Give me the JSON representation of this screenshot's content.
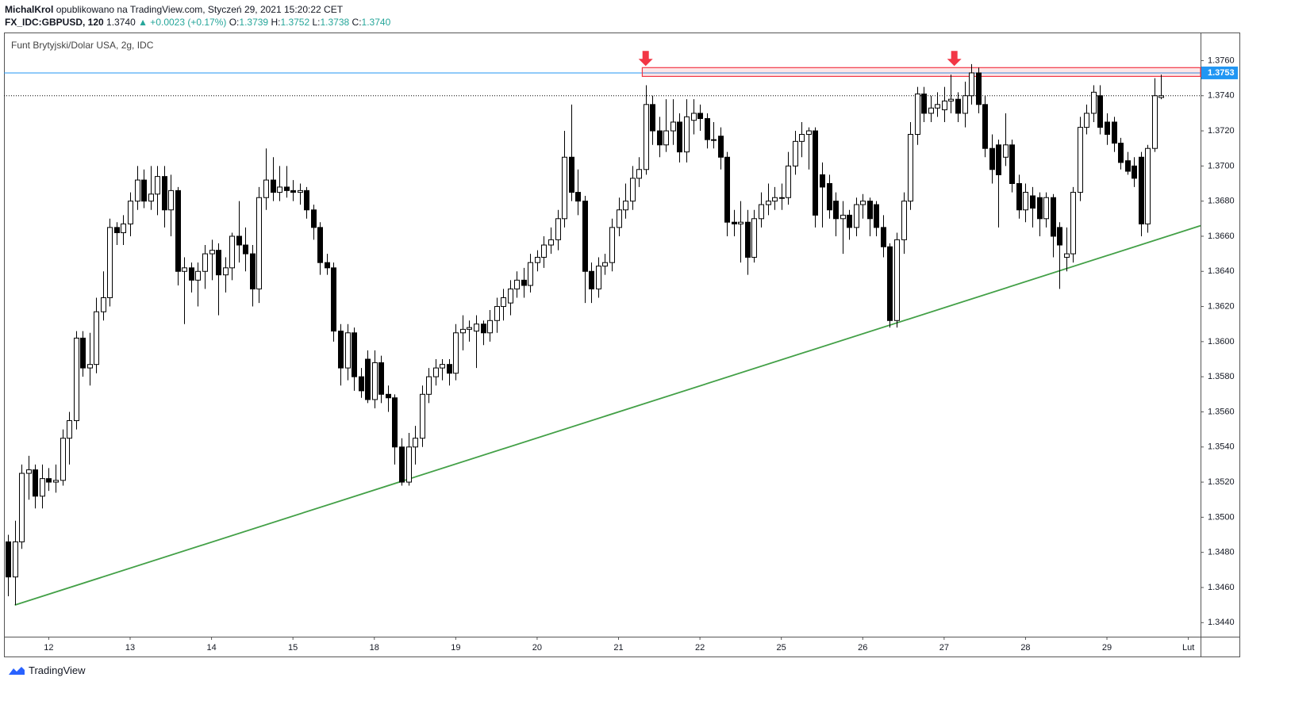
{
  "header": {
    "user": "MichalKrol",
    "published": "opublikowano na TradingView.com, Styczeń 29, 2021 15:20:22 CET",
    "symbol": "FX_IDC:GBPUSD, 120",
    "last": "1.3740",
    "change": "▲ +0.0023 (+0.17%)",
    "legend": [
      {
        "label": "O:",
        "value": "1.3739"
      },
      {
        "label": "H:",
        "value": "1.3752"
      },
      {
        "label": "L:",
        "value": "1.3738"
      },
      {
        "label": "C:",
        "value": "1.3740"
      }
    ]
  },
  "footer": {
    "brand": "TradingView"
  },
  "chart_data": {
    "type": "candlestick",
    "subtitle": "Funt Brytyjski/Dolar USA, 2g, IDC",
    "up_color": "#ffffff",
    "down_color": "#000000",
    "wick_color": "#000000",
    "xlim": [
      -0.6,
      175.8
    ],
    "ylim": [
      1.3432,
      1.3776
    ],
    "xticks": [
      {
        "value": 6,
        "label": "12"
      },
      {
        "value": 18,
        "label": "13"
      },
      {
        "value": 30,
        "label": "14"
      },
      {
        "value": 42,
        "label": "15"
      },
      {
        "value": 54,
        "label": "18"
      },
      {
        "value": 66,
        "label": "19"
      },
      {
        "value": 78,
        "label": "20"
      },
      {
        "value": 90,
        "label": "21"
      },
      {
        "value": 102,
        "label": "22"
      },
      {
        "value": 114,
        "label": "25"
      },
      {
        "value": 126,
        "label": "26"
      },
      {
        "value": 138,
        "label": "27"
      },
      {
        "value": 150,
        "label": "28"
      },
      {
        "value": 162,
        "label": "29"
      },
      {
        "value": 174,
        "label": "Lut"
      }
    ],
    "yticks": [
      {
        "value": 1.344,
        "label": "1.3440"
      },
      {
        "value": 1.346,
        "label": "1.3460"
      },
      {
        "value": 1.348,
        "label": "1.3480"
      },
      {
        "value": 1.35,
        "label": "1.3500"
      },
      {
        "value": 1.352,
        "label": "1.3520"
      },
      {
        "value": 1.354,
        "label": "1.3540"
      },
      {
        "value": 1.356,
        "label": "1.3560"
      },
      {
        "value": 1.358,
        "label": "1.3580"
      },
      {
        "value": 1.36,
        "label": "1.3600"
      },
      {
        "value": 1.362,
        "label": "1.3620"
      },
      {
        "value": 1.364,
        "label": "1.3640"
      },
      {
        "value": 1.366,
        "label": "1.3660"
      },
      {
        "value": 1.368,
        "label": "1.3680"
      },
      {
        "value": 1.37,
        "label": "1.3700"
      },
      {
        "value": 1.372,
        "label": "1.3720"
      },
      {
        "value": 1.374,
        "label": "1.3740"
      },
      {
        "value": 1.376,
        "label": "1.3760"
      }
    ],
    "last_price": 1.374,
    "price_marker": {
      "value": 1.3753,
      "label": "1.3753",
      "color": "#2196f3"
    },
    "resistance": {
      "x": 93.5,
      "ylim": [
        1.3751,
        1.3756
      ],
      "color": "#f23645"
    },
    "arrows_x": [
      94,
      139.5
    ],
    "trendline": {
      "x": [
        1,
        175.8
      ],
      "y": [
        1.345,
        1.3666
      ],
      "color": "#43a047"
    },
    "ohlc": [
      [
        1.3486,
        1.349,
        1.3455,
        1.3466
      ],
      [
        1.3466,
        1.3498,
        1.345,
        1.3486
      ],
      [
        1.3486,
        1.353,
        1.3482,
        1.3525
      ],
      [
        1.3525,
        1.3535,
        1.351,
        1.3527
      ],
      [
        1.3527,
        1.353,
        1.3505,
        1.3512
      ],
      [
        1.3512,
        1.353,
        1.3505,
        1.3522
      ],
      [
        1.3522,
        1.3528,
        1.3515,
        1.352
      ],
      [
        1.352,
        1.353,
        1.3514,
        1.3521
      ],
      [
        1.3521,
        1.355,
        1.3518,
        1.3545
      ],
      [
        1.3545,
        1.356,
        1.353,
        1.3555
      ],
      [
        1.3555,
        1.3606,
        1.355,
        1.3602
      ],
      [
        1.3602,
        1.3606,
        1.358,
        1.3585
      ],
      [
        1.3585,
        1.3605,
        1.3575,
        1.3587
      ],
      [
        1.3587,
        1.3625,
        1.3582,
        1.3617
      ],
      [
        1.3617,
        1.364,
        1.3612,
        1.3625
      ],
      [
        1.3625,
        1.367,
        1.362,
        1.3665
      ],
      [
        1.3665,
        1.3668,
        1.3655,
        1.3662
      ],
      [
        1.3662,
        1.3672,
        1.3655,
        1.3667
      ],
      [
        1.3667,
        1.3685,
        1.366,
        1.368
      ],
      [
        1.368,
        1.37,
        1.3675,
        1.3692
      ],
      [
        1.3692,
        1.3698,
        1.3676,
        1.368
      ],
      [
        1.368,
        1.37,
        1.3675,
        1.3684
      ],
      [
        1.3684,
        1.37,
        1.3672,
        1.3694
      ],
      [
        1.3694,
        1.37,
        1.3665,
        1.3675
      ],
      [
        1.3675,
        1.3695,
        1.366,
        1.3686
      ],
      [
        1.3686,
        1.3688,
        1.3632,
        1.364
      ],
      [
        1.364,
        1.3648,
        1.361,
        1.3642
      ],
      [
        1.3642,
        1.3645,
        1.3628,
        1.3635
      ],
      [
        1.3635,
        1.3645,
        1.362,
        1.364
      ],
      [
        1.364,
        1.3655,
        1.363,
        1.365
      ],
      [
        1.365,
        1.3658,
        1.3635,
        1.3652
      ],
      [
        1.3652,
        1.3656,
        1.3615,
        1.3638
      ],
      [
        1.3638,
        1.3648,
        1.3628,
        1.3642
      ],
      [
        1.3642,
        1.3662,
        1.3635,
        1.366
      ],
      [
        1.366,
        1.368,
        1.3645,
        1.3655
      ],
      [
        1.3655,
        1.3665,
        1.364,
        1.365
      ],
      [
        1.365,
        1.3655,
        1.362,
        1.363
      ],
      [
        1.363,
        1.3688,
        1.3622,
        1.3682
      ],
      [
        1.3682,
        1.371,
        1.3675,
        1.3692
      ],
      [
        1.3692,
        1.3705,
        1.368,
        1.3685
      ],
      [
        1.3685,
        1.37,
        1.368,
        1.3688
      ],
      [
        1.3688,
        1.37,
        1.3682,
        1.3686
      ],
      [
        1.3686,
        1.3692,
        1.368,
        1.3685
      ],
      [
        1.3685,
        1.369,
        1.3678,
        1.3686
      ],
      [
        1.3686,
        1.3688,
        1.367,
        1.3675
      ],
      [
        1.3675,
        1.3678,
        1.3658,
        1.3665
      ],
      [
        1.3665,
        1.3668,
        1.3638,
        1.3645
      ],
      [
        1.3645,
        1.365,
        1.3638,
        1.3642
      ],
      [
        1.3642,
        1.3645,
        1.36,
        1.3606
      ],
      [
        1.3606,
        1.361,
        1.3575,
        1.3585
      ],
      [
        1.3585,
        1.361,
        1.3578,
        1.3605
      ],
      [
        1.3605,
        1.3608,
        1.3572,
        1.358
      ],
      [
        1.358,
        1.3585,
        1.3568,
        1.3572
      ],
      [
        1.359,
        1.3595,
        1.3565,
        1.3567
      ],
      [
        1.3567,
        1.3595,
        1.3562,
        1.3588
      ],
      [
        1.3588,
        1.3592,
        1.3565,
        1.357
      ],
      [
        1.357,
        1.3575,
        1.356,
        1.3568
      ],
      [
        1.3568,
        1.357,
        1.353,
        1.354
      ],
      [
        1.354,
        1.3545,
        1.3518,
        1.352
      ],
      [
        1.352,
        1.3548,
        1.3518,
        1.354
      ],
      [
        1.354,
        1.3552,
        1.353,
        1.3545
      ],
      [
        1.3545,
        1.3575,
        1.354,
        1.357
      ],
      [
        1.357,
        1.3585,
        1.3565,
        1.358
      ],
      [
        1.358,
        1.359,
        1.3575,
        1.3585
      ],
      [
        1.3585,
        1.359,
        1.3578,
        1.3587
      ],
      [
        1.3587,
        1.359,
        1.3575,
        1.3582
      ],
      [
        1.3582,
        1.361,
        1.3578,
        1.3605
      ],
      [
        1.3605,
        1.3615,
        1.3595,
        1.3607
      ],
      [
        1.3607,
        1.3612,
        1.36,
        1.3608
      ],
      [
        1.3606,
        1.3615,
        1.3585,
        1.361
      ],
      [
        1.361,
        1.3612,
        1.3598,
        1.3605
      ],
      [
        1.3605,
        1.3618,
        1.36,
        1.3612
      ],
      [
        1.3612,
        1.3625,
        1.3605,
        1.362
      ],
      [
        1.362,
        1.363,
        1.3612,
        1.3625
      ],
      [
        1.3622,
        1.3635,
        1.3615,
        1.363
      ],
      [
        1.363,
        1.364,
        1.3625,
        1.3635
      ],
      [
        1.3635,
        1.3642,
        1.3625,
        1.3632
      ],
      [
        1.3632,
        1.365,
        1.3628,
        1.3645
      ],
      [
        1.3645,
        1.3652,
        1.364,
        1.3648
      ],
      [
        1.3648,
        1.366,
        1.3642,
        1.3655
      ],
      [
        1.3655,
        1.3665,
        1.365,
        1.3658
      ],
      [
        1.3658,
        1.3675,
        1.3652,
        1.367
      ],
      [
        1.367,
        1.372,
        1.3665,
        1.3705
      ],
      [
        1.3705,
        1.3735,
        1.368,
        1.3685
      ],
      [
        1.3685,
        1.3698,
        1.3672,
        1.368
      ],
      [
        1.368,
        1.3683,
        1.3622,
        1.364
      ],
      [
        1.364,
        1.3645,
        1.3622,
        1.363
      ],
      [
        1.363,
        1.3648,
        1.3625,
        1.3643
      ],
      [
        1.3643,
        1.365,
        1.3638,
        1.3645
      ],
      [
        1.3645,
        1.367,
        1.364,
        1.3665
      ],
      [
        1.3665,
        1.3682,
        1.366,
        1.3675
      ],
      [
        1.3675,
        1.369,
        1.367,
        1.368
      ],
      [
        1.368,
        1.37,
        1.3675,
        1.3693
      ],
      [
        1.3693,
        1.3705,
        1.3688,
        1.3698
      ],
      [
        1.3698,
        1.3746,
        1.3695,
        1.3735
      ],
      [
        1.3735,
        1.374,
        1.3712,
        1.372
      ],
      [
        1.372,
        1.3728,
        1.3705,
        1.3712
      ],
      [
        1.3712,
        1.3738,
        1.3708,
        1.372
      ],
      [
        1.372,
        1.3738,
        1.3712,
        1.3725
      ],
      [
        1.3725,
        1.373,
        1.3702,
        1.3708
      ],
      [
        1.3708,
        1.3738,
        1.3702,
        1.3728
      ],
      [
        1.3726,
        1.3738,
        1.3718,
        1.373
      ],
      [
        1.373,
        1.3735,
        1.372,
        1.3727
      ],
      [
        1.3727,
        1.373,
        1.371,
        1.3715
      ],
      [
        1.3715,
        1.3725,
        1.371,
        1.3715
      ],
      [
        1.3717,
        1.3722,
        1.3698,
        1.3705
      ],
      [
        1.3705,
        1.3708,
        1.366,
        1.3668
      ],
      [
        1.3668,
        1.3675,
        1.366,
        1.3667
      ],
      [
        1.3667,
        1.368,
        1.3645,
        1.3668
      ],
      [
        1.3668,
        1.3675,
        1.3638,
        1.3648
      ],
      [
        1.3648,
        1.3675,
        1.3645,
        1.367
      ],
      [
        1.367,
        1.3685,
        1.3665,
        1.3678
      ],
      [
        1.3678,
        1.369,
        1.3672,
        1.368
      ],
      [
        1.368,
        1.3688,
        1.3675,
        1.3682
      ],
      [
        1.3682,
        1.369,
        1.3675,
        1.3682
      ],
      [
        1.3682,
        1.3708,
        1.3678,
        1.37
      ],
      [
        1.37,
        1.372,
        1.3695,
        1.3714
      ],
      [
        1.3714,
        1.3725,
        1.3705,
        1.3718
      ],
      [
        1.3718,
        1.3722,
        1.3698,
        1.372
      ],
      [
        1.372,
        1.3722,
        1.3665,
        1.3672
      ],
      [
        1.3695,
        1.3702,
        1.3665,
        1.3688
      ],
      [
        1.369,
        1.3695,
        1.367,
        1.3675
      ],
      [
        1.368,
        1.3685,
        1.366,
        1.367
      ],
      [
        1.367,
        1.368,
        1.365,
        1.3672
      ],
      [
        1.3672,
        1.3675,
        1.3658,
        1.3665
      ],
      [
        1.3665,
        1.3682,
        1.366,
        1.3678
      ],
      [
        1.3678,
        1.3684,
        1.367,
        1.368
      ],
      [
        1.368,
        1.3682,
        1.366,
        1.367
      ],
      [
        1.3678,
        1.368,
        1.366,
        1.3665
      ],
      [
        1.3665,
        1.3672,
        1.3648,
        1.3654
      ],
      [
        1.3654,
        1.3656,
        1.3608,
        1.3612
      ],
      [
        1.3612,
        1.3662,
        1.3608,
        1.3658
      ],
      [
        1.3658,
        1.3685,
        1.365,
        1.368
      ],
      [
        1.368,
        1.3725,
        1.3675,
        1.3718
      ],
      [
        1.3718,
        1.3745,
        1.3712,
        1.3741
      ],
      [
        1.3741,
        1.3745,
        1.3725,
        1.373
      ],
      [
        1.373,
        1.374,
        1.3725,
        1.3733
      ],
      [
        1.3733,
        1.3742,
        1.3728,
        1.3735
      ],
      [
        1.3732,
        1.3745,
        1.3725,
        1.3737
      ],
      [
        1.3737,
        1.3752,
        1.373,
        1.3738
      ],
      [
        1.3738,
        1.3742,
        1.3725,
        1.373
      ],
      [
        1.373,
        1.3748,
        1.3722,
        1.374
      ],
      [
        1.374,
        1.3758,
        1.3735,
        1.3753
      ],
      [
        1.3753,
        1.3756,
        1.373,
        1.3735
      ],
      [
        1.3735,
        1.374,
        1.3705,
        1.371
      ],
      [
        1.371,
        1.3718,
        1.369,
        1.3698
      ],
      [
        1.3712,
        1.3715,
        1.3665,
        1.3695
      ],
      [
        1.3705,
        1.373,
        1.37,
        1.3712
      ],
      [
        1.3712,
        1.3715,
        1.3685,
        1.369
      ],
      [
        1.369,
        1.3695,
        1.367,
        1.3675
      ],
      [
        1.3675,
        1.369,
        1.3668,
        1.3685
      ],
      [
        1.3683,
        1.3688,
        1.3665,
        1.3676
      ],
      [
        1.3682,
        1.3685,
        1.366,
        1.367
      ],
      [
        1.367,
        1.3685,
        1.3665,
        1.3682
      ],
      [
        1.3682,
        1.3684,
        1.3648,
        1.366
      ],
      [
        1.3665,
        1.3668,
        1.363,
        1.3655
      ],
      [
        1.3648,
        1.3665,
        1.364,
        1.365
      ],
      [
        1.365,
        1.3688,
        1.3645,
        1.3685
      ],
      [
        1.3685,
        1.3728,
        1.368,
        1.3722
      ],
      [
        1.3722,
        1.3735,
        1.3718,
        1.373
      ],
      [
        1.373,
        1.3746,
        1.3725,
        1.3742
      ],
      [
        1.374,
        1.3746,
        1.3718,
        1.3722
      ],
      [
        1.3725,
        1.373,
        1.3712,
        1.3718
      ],
      [
        1.3725,
        1.3728,
        1.3708,
        1.3713
      ],
      [
        1.3713,
        1.3716,
        1.3698,
        1.3702
      ],
      [
        1.3703,
        1.3708,
        1.3695,
        1.3697
      ],
      [
        1.37,
        1.3705,
        1.3688,
        1.3693
      ],
      [
        1.3705,
        1.3708,
        1.366,
        1.3667
      ],
      [
        1.3667,
        1.3712,
        1.3662,
        1.371
      ],
      [
        1.371,
        1.375,
        1.3708,
        1.374
      ],
      [
        1.3739,
        1.3752,
        1.3738,
        1.374
      ]
    ]
  }
}
